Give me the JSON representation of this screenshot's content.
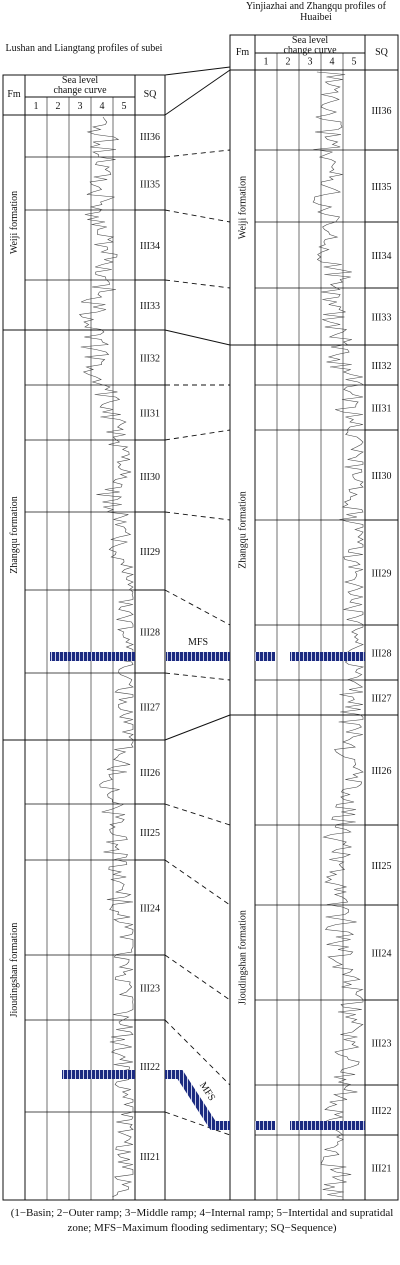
{
  "left_profile": {
    "title": "Lushan and Liangtang profiles of subei",
    "header": {
      "fm": "Fm",
      "curve": "Sea level change curve",
      "columns": [
        "1",
        "2",
        "3",
        "4",
        "5"
      ],
      "sq": "SQ"
    },
    "formations": [
      "Weiji formation",
      "Zhangqu formation",
      "Jioudingshan formation"
    ],
    "sequences": [
      "III36",
      "III35",
      "III34",
      "III33",
      "III32",
      "III31",
      "III30",
      "III29",
      "III28",
      "III27",
      "III26",
      "III25",
      "III24",
      "III23",
      "III22",
      "III21"
    ]
  },
  "right_profile": {
    "title": "Yinjiazhai and Zhangqu profiles of Huaibei",
    "header": {
      "fm": "Fm",
      "curve": "Sea level change curve",
      "columns": [
        "1",
        "2",
        "3",
        "4",
        "5"
      ],
      "sq": "SQ"
    },
    "formations": [
      "Weiji formation",
      "Zhangqu formation",
      "Jioudingshan formation"
    ],
    "sequences": [
      "III36",
      "III35",
      "III34",
      "III33",
      "III32",
      "III31",
      "III30",
      "III29",
      "III28",
      "III27",
      "III26",
      "III25",
      "III24",
      "III23",
      "III22",
      "III21"
    ]
  },
  "mfs_labels": [
    "MFS",
    "MFS"
  ],
  "caption": "(1−Basin; 2−Outer ramp; 3−Middle ramp; 4−Internal ramp; 5−Intertidal and supratidal zone; MFS−Maximum flooding sedimentary; SQ−Sequence)"
}
